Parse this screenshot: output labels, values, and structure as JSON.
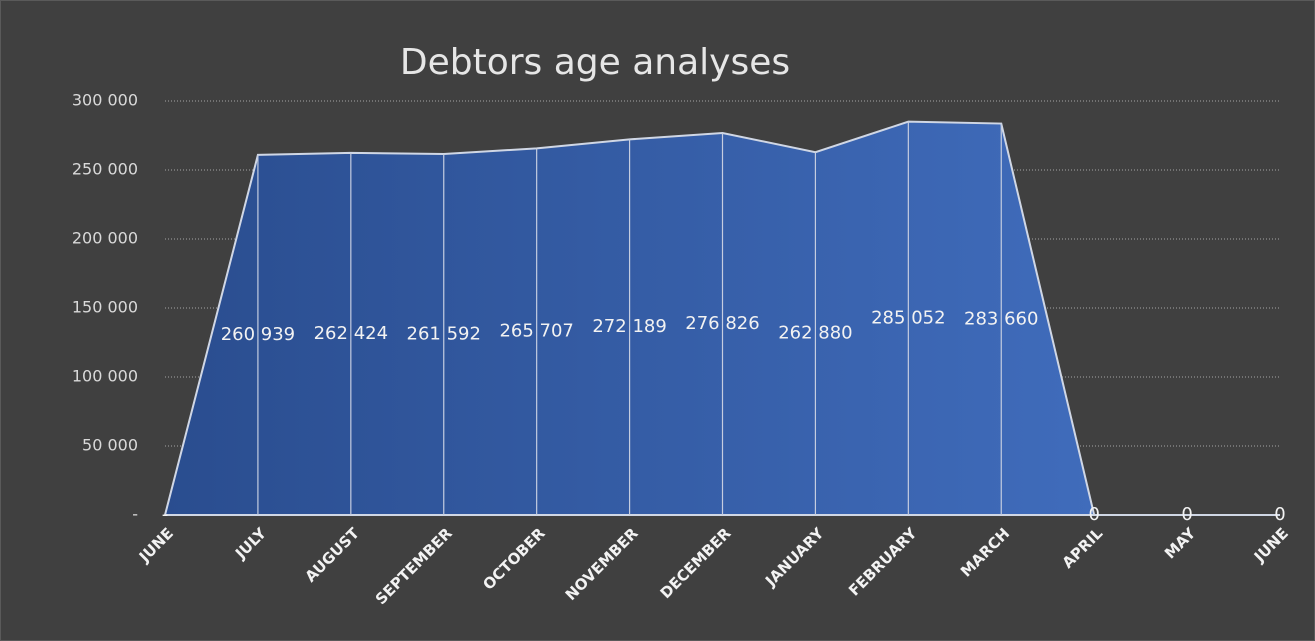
{
  "chart_data": {
    "type": "area",
    "title": "Debtors age analyses",
    "categories": [
      "JUNE",
      "JULY",
      "AUGUST",
      "SEPTEMBER",
      "OCTOBER",
      "NOVEMBER",
      "DECEMBER",
      "JANUARY",
      "FEBRUARY",
      "MARCH",
      "APRIL",
      "MAY",
      "JUNE"
    ],
    "values": [
      0,
      260939,
      262424,
      261592,
      265707,
      272189,
      276826,
      262880,
      285052,
      283660,
      0,
      0,
      0
    ],
    "value_labels": [
      "-",
      "260 939",
      "262 424",
      "261 592",
      "265 707",
      "272 189",
      "276 826",
      "262 880",
      "285 052",
      "283 660",
      "0",
      "0",
      "0"
    ],
    "color": "#4472c4",
    "ylim": [
      0,
      300000
    ],
    "yticks": [
      {
        "value": 0,
        "label": "-"
      },
      {
        "value": 50000,
        "label": "50 000"
      },
      {
        "value": 100000,
        "label": "100 000"
      },
      {
        "value": 150000,
        "label": "150 000"
      },
      {
        "value": 200000,
        "label": "200 000"
      },
      {
        "value": 250000,
        "label": "250 000"
      },
      {
        "value": 300000,
        "label": "300 000"
      }
    ],
    "grid": true
  }
}
